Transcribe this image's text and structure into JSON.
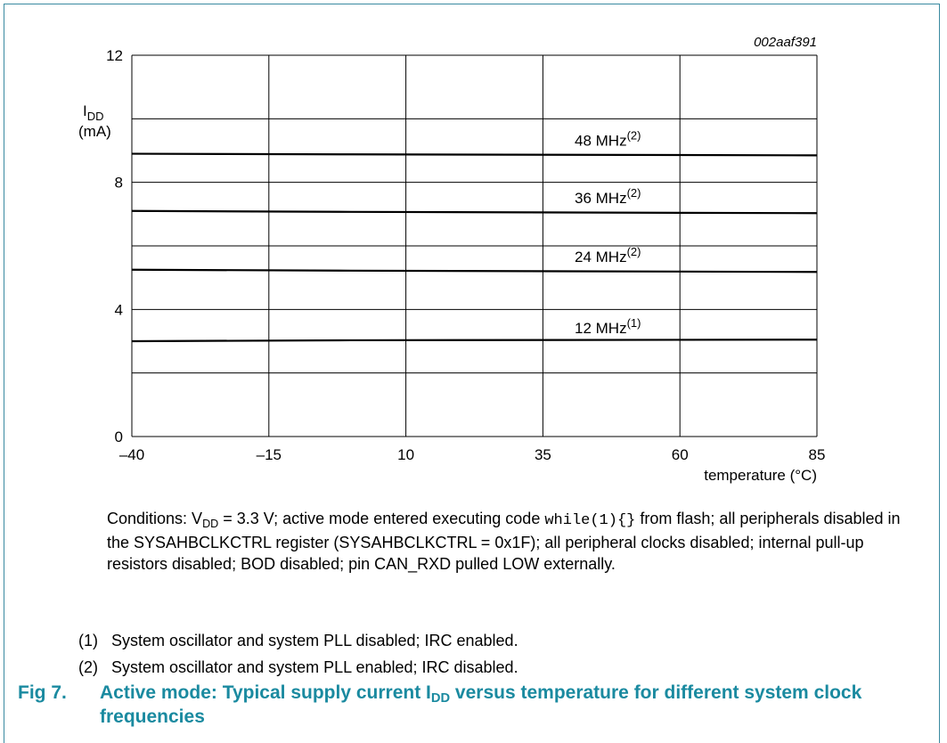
{
  "chart_data": {
    "type": "line",
    "figure_code": "002aaf391",
    "x": [
      -40,
      -15,
      10,
      35,
      60,
      85
    ],
    "x_tick_labels": [
      "–40",
      "–15",
      "10",
      "35",
      "60",
      "85"
    ],
    "xlabel": "temperature (°C)",
    "xlim": [
      -40,
      85
    ],
    "ylabel_main": "I",
    "ylabel_sub": "DD",
    "ylabel_unit": "(mA)",
    "ylim": [
      0,
      12
    ],
    "y_ticks": [
      0,
      4,
      8,
      12
    ],
    "grid": true,
    "series": [
      {
        "name": "48 MHz",
        "sup": "(2)",
        "x": [
          -40,
          0,
          85
        ],
        "values": [
          8.9,
          8.88,
          8.85
        ]
      },
      {
        "name": "36 MHz",
        "sup": "(2)",
        "x": [
          -40,
          0,
          85
        ],
        "values": [
          7.1,
          7.07,
          7.03
        ]
      },
      {
        "name": "24 MHz",
        "sup": "(2)",
        "x": [
          -40,
          0,
          85
        ],
        "values": [
          5.25,
          5.22,
          5.18
        ]
      },
      {
        "name": "12 MHz",
        "sup": "(1)",
        "x": [
          -40,
          0,
          85
        ],
        "values": [
          3.0,
          3.03,
          3.05
        ]
      }
    ]
  },
  "conditions": {
    "prefix": "Conditions: V",
    "vdd_sub": "DD",
    "part1": " = 3.3 V; active mode entered executing code ",
    "code": "while(1){}",
    "part2": " from flash; all peripherals disabled in the SYSAHBCLKCTRL register (SYSAHBCLKCTRL = 0x1F); all peripheral clocks disabled; internal pull-up resistors disabled; BOD disabled; pin CAN_RXD pulled LOW externally."
  },
  "notes": [
    {
      "num": "(1)",
      "text": "System oscillator and system PLL disabled; IRC enabled."
    },
    {
      "num": "(2)",
      "text": "System oscillator and system PLL enabled; IRC disabled."
    }
  ],
  "figure": {
    "label": "Fig 7.",
    "title_pre": "Active mode: Typical supply current I",
    "title_sub": "DD",
    "title_post": " versus temperature for different system clock frequencies"
  }
}
